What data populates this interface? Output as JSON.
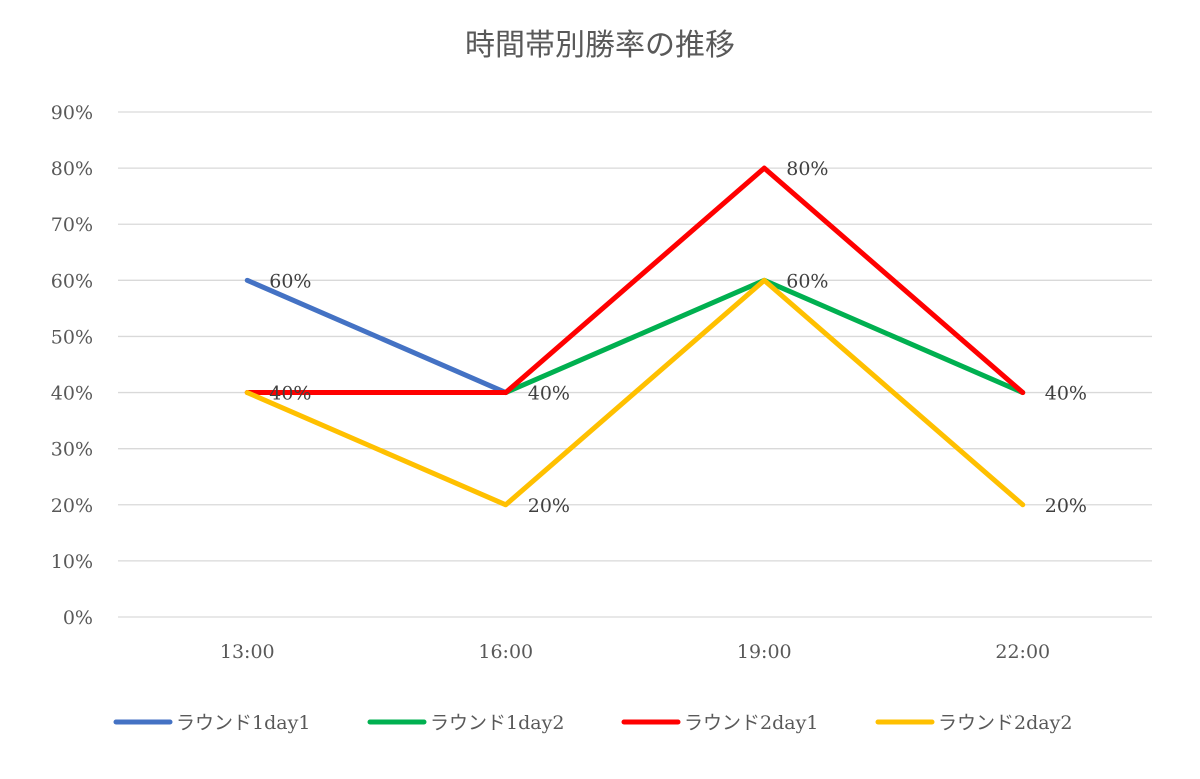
{
  "chart_data": {
    "type": "line",
    "title": "時間帯別勝率の推移",
    "xlabel": "",
    "ylabel": "",
    "categories": [
      "13:00",
      "16:00",
      "19:00",
      "22:00"
    ],
    "y_ticks": [
      "0%",
      "10%",
      "20%",
      "30%",
      "40%",
      "50%",
      "60%",
      "70%",
      "80%",
      "90%"
    ],
    "ylim": [
      0,
      90
    ],
    "grid": true,
    "legend_position": "bottom",
    "series": [
      {
        "name": "ラウンド1day1",
        "color": "#4472C4",
        "values": [
          60,
          40,
          null,
          null
        ]
      },
      {
        "name": "ラウンド1day2",
        "color": "#00B050",
        "values": [
          null,
          40,
          60,
          40
        ]
      },
      {
        "name": "ラウンド2day1",
        "color": "#FF0000",
        "values": [
          40,
          40,
          80,
          40
        ]
      },
      {
        "name": "ラウンド2day2",
        "color": "#FFC000",
        "values": [
          40,
          20,
          60,
          20
        ]
      }
    ],
    "data_labels": [
      {
        "category": "13:00",
        "value": 60,
        "text": "60%"
      },
      {
        "category": "13:00",
        "value": 40,
        "text": "40%"
      },
      {
        "category": "16:00",
        "value": 40,
        "text": "40%"
      },
      {
        "category": "16:00",
        "value": 20,
        "text": "20%"
      },
      {
        "category": "19:00",
        "value": 80,
        "text": "80%"
      },
      {
        "category": "19:00",
        "value": 60,
        "text": "60%"
      },
      {
        "category": "22:00",
        "value": 40,
        "text": "40%"
      },
      {
        "category": "22:00",
        "value": 20,
        "text": "20%"
      }
    ]
  }
}
